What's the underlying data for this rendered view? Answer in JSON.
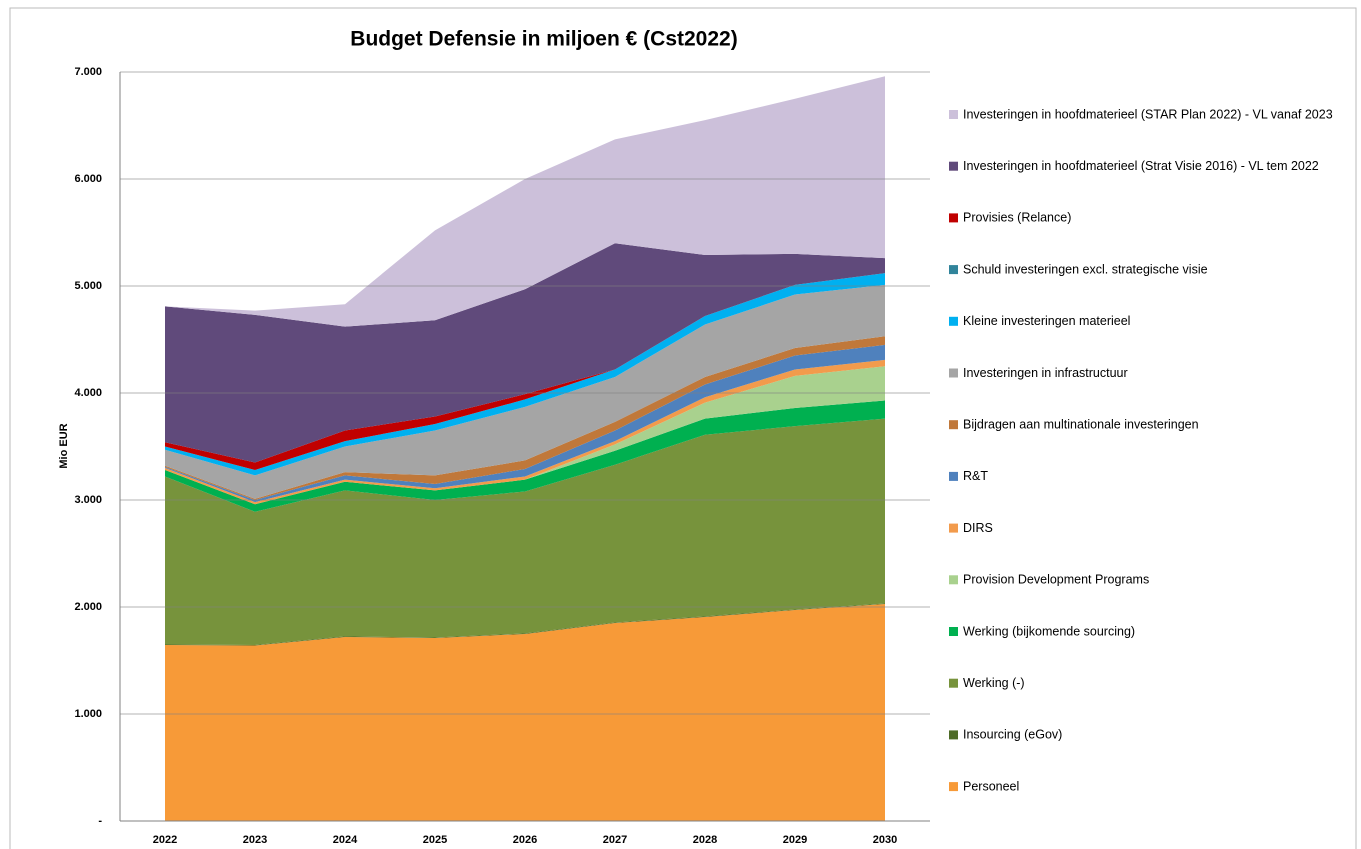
{
  "chart_data": {
    "type": "stacked_area",
    "title": "Budget Defensie in miljoen € (Cst2022)",
    "y_label": "Mio EUR",
    "categories": [
      "2022",
      "2023",
      "2024",
      "2025",
      "2026",
      "2027",
      "2028",
      "2029",
      "2030"
    ],
    "ylim": [
      0,
      7000
    ],
    "yticks": [
      {
        "value": 0,
        "label": "-"
      },
      {
        "value": 1000,
        "label": "1.000"
      },
      {
        "value": 2000,
        "label": "2.000"
      },
      {
        "value": 3000,
        "label": "3.000"
      },
      {
        "value": 4000,
        "label": "4.000"
      },
      {
        "value": 5000,
        "label": "5.000"
      },
      {
        "value": 6000,
        "label": "6.000"
      },
      {
        "value": 7000,
        "label": "7.000"
      }
    ],
    "grid": true,
    "legend": "right",
    "series": [
      {
        "name": "Personeel",
        "color": "#f79a38",
        "values": [
          1645,
          1640,
          1720,
          1710,
          1748,
          1850,
          1907,
          1972,
          2028
        ]
      },
      {
        "name": "Insourcing (eGov)",
        "color": "#4e6b27",
        "values": [
          5,
          5,
          5,
          5,
          5,
          5,
          5,
          5,
          5
        ]
      },
      {
        "name": "Werking (-)",
        "color": "#77933c",
        "values": [
          1570,
          1245,
          1365,
          1285,
          1327,
          1475,
          1698,
          1713,
          1727
        ]
      },
      {
        "name": "Werking (bijkomende sourcing)",
        "color": "#00b050",
        "values": [
          60,
          70,
          80,
          90,
          110,
          130,
          150,
          170,
          170
        ]
      },
      {
        "name": "Provision Development Programs",
        "color": "#a9d18e",
        "values": [
          0,
          0,
          0,
          0,
          0,
          60,
          150,
          300,
          320
        ]
      },
      {
        "name": "DIRS",
        "color": "#f29b4c",
        "values": [
          20,
          20,
          20,
          20,
          30,
          30,
          50,
          60,
          60
        ]
      },
      {
        "name": "R&T",
        "color": "#4f81bd",
        "values": [
          10,
          20,
          40,
          40,
          70,
          100,
          120,
          130,
          140
        ]
      },
      {
        "name": "Bijdragen aan multinationale investeringen",
        "color": "#c0783a",
        "values": [
          10,
          10,
          30,
          80,
          80,
          80,
          70,
          70,
          80
        ]
      },
      {
        "name": "Investeringen in infrastructuur",
        "color": "#a5a5a5",
        "values": [
          150,
          220,
          240,
          420,
          500,
          420,
          490,
          500,
          480
        ]
      },
      {
        "name": "Kleine investeringen materieel",
        "color": "#00b0f0",
        "values": [
          30,
          50,
          50,
          60,
          70,
          70,
          80,
          90,
          110
        ]
      },
      {
        "name": "Schuld investeringen excl. strategische visie",
        "color": "#31849b",
        "values": [
          0,
          0,
          0,
          0,
          0,
          0,
          0,
          0,
          0
        ]
      },
      {
        "name": "Provisies (Relance)",
        "color": "#c00000",
        "values": [
          40,
          70,
          100,
          70,
          50,
          0,
          0,
          0,
          0
        ]
      },
      {
        "name": "Investeringen in hoofdmaterieel (Strat Visie 2016) - VL tem 2022",
        "color": "#604a7b",
        "values": [
          1270,
          1380,
          970,
          900,
          980,
          1180,
          570,
          290,
          140
        ]
      },
      {
        "name": "Investeringen in hoofdmaterieel (STAR Plan 2022) - VL vanaf 2023",
        "color": "#ccc0da",
        "values": [
          0,
          40,
          210,
          840,
          1030,
          970,
          1260,
          1450,
          1700
        ]
      }
    ]
  }
}
